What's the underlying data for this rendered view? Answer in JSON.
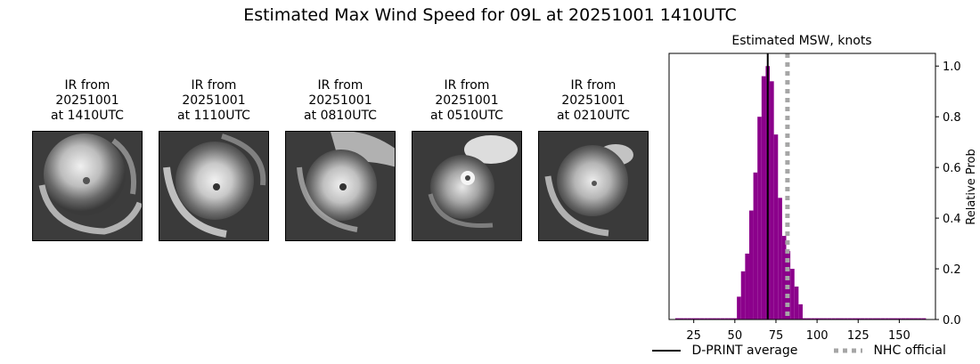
{
  "page": {
    "title": "Estimated Max Wind Speed for 09L at 20251001 1410UTC"
  },
  "ir_panels": [
    {
      "label": "IR from\n20251001\nat 1410UTC"
    },
    {
      "label": "IR from\n20251001\nat 1110UTC"
    },
    {
      "label": "IR from\n20251001\nat 0810UTC"
    },
    {
      "label": "IR from\n20251001\nat 0510UTC"
    },
    {
      "label": "IR from\n20251001\nat 0210UTC"
    }
  ],
  "chart_data": {
    "type": "bar",
    "title": "Estimated MSW, knots",
    "xlabel": "",
    "ylabel": "Relative Prob",
    "xlim": [
      10,
      172
    ],
    "ylim": [
      0,
      1.05
    ],
    "xticks": [
      25,
      50,
      75,
      100,
      125,
      150
    ],
    "yticks": [
      0.0,
      0.2,
      0.4,
      0.6,
      0.8,
      1.0
    ],
    "ytick_labels": [
      "0.0",
      "0.2",
      "0.4",
      "0.6",
      "0.8",
      "1.0"
    ],
    "yaxis_side": "right",
    "bar_color": "#8b008b",
    "bin_width": 2.5,
    "bins": [
      {
        "x": 15,
        "value": 0.005
      },
      {
        "x": 17.5,
        "value": 0.005
      },
      {
        "x": 20,
        "value": 0.005
      },
      {
        "x": 22.5,
        "value": 0.005
      },
      {
        "x": 25,
        "value": 0.005
      },
      {
        "x": 27.5,
        "value": 0.005
      },
      {
        "x": 30,
        "value": 0.005
      },
      {
        "x": 32.5,
        "value": 0.005
      },
      {
        "x": 35,
        "value": 0.005
      },
      {
        "x": 37.5,
        "value": 0.005
      },
      {
        "x": 40,
        "value": 0.005
      },
      {
        "x": 42.5,
        "value": 0.005
      },
      {
        "x": 45,
        "value": 0.005
      },
      {
        "x": 47.5,
        "value": 0.005
      },
      {
        "x": 50,
        "value": 0.005
      },
      {
        "x": 52.5,
        "value": 0.09
      },
      {
        "x": 55,
        "value": 0.19
      },
      {
        "x": 57.5,
        "value": 0.26
      },
      {
        "x": 60,
        "value": 0.43
      },
      {
        "x": 62.5,
        "value": 0.58
      },
      {
        "x": 65,
        "value": 0.8
      },
      {
        "x": 67.5,
        "value": 0.96
      },
      {
        "x": 70,
        "value": 1.0
      },
      {
        "x": 72.5,
        "value": 0.94
      },
      {
        "x": 75,
        "value": 0.73
      },
      {
        "x": 77.5,
        "value": 0.48
      },
      {
        "x": 80,
        "value": 0.33
      },
      {
        "x": 82.5,
        "value": 0.27
      },
      {
        "x": 85,
        "value": 0.2
      },
      {
        "x": 87.5,
        "value": 0.13
      },
      {
        "x": 90,
        "value": 0.06
      },
      {
        "x": 92.5,
        "value": 0.005
      },
      {
        "x": 95,
        "value": 0.005
      },
      {
        "x": 97.5,
        "value": 0.005
      },
      {
        "x": 100,
        "value": 0.005
      },
      {
        "x": 102.5,
        "value": 0.005
      },
      {
        "x": 105,
        "value": 0.005
      },
      {
        "x": 107.5,
        "value": 0.005
      },
      {
        "x": 110,
        "value": 0.005
      },
      {
        "x": 112.5,
        "value": 0.005
      },
      {
        "x": 115,
        "value": 0.005
      },
      {
        "x": 117.5,
        "value": 0.005
      },
      {
        "x": 120,
        "value": 0.005
      },
      {
        "x": 122.5,
        "value": 0.005
      },
      {
        "x": 125,
        "value": 0.005
      },
      {
        "x": 127.5,
        "value": 0.005
      },
      {
        "x": 130,
        "value": 0.005
      },
      {
        "x": 132.5,
        "value": 0.005
      },
      {
        "x": 135,
        "value": 0.005
      },
      {
        "x": 137.5,
        "value": 0.005
      },
      {
        "x": 140,
        "value": 0.005
      },
      {
        "x": 142.5,
        "value": 0.005
      },
      {
        "x": 145,
        "value": 0.005
      },
      {
        "x": 147.5,
        "value": 0.005
      },
      {
        "x": 150,
        "value": 0.005
      },
      {
        "x": 152.5,
        "value": 0.005
      },
      {
        "x": 155,
        "value": 0.005
      },
      {
        "x": 157.5,
        "value": 0.005
      },
      {
        "x": 160,
        "value": 0.005
      },
      {
        "x": 162.5,
        "value": 0.005
      },
      {
        "x": 165,
        "value": 0.005
      }
    ],
    "lines": [
      {
        "name": "D-PRINT average",
        "x": 70,
        "color": "#000000",
        "style": "solid"
      },
      {
        "name": "NHC official",
        "x": 82,
        "color": "#a6a6a6",
        "style": "dotted"
      }
    ],
    "legend": [
      "D-PRINT average",
      "NHC official"
    ],
    "legend_placement": "bottom"
  }
}
